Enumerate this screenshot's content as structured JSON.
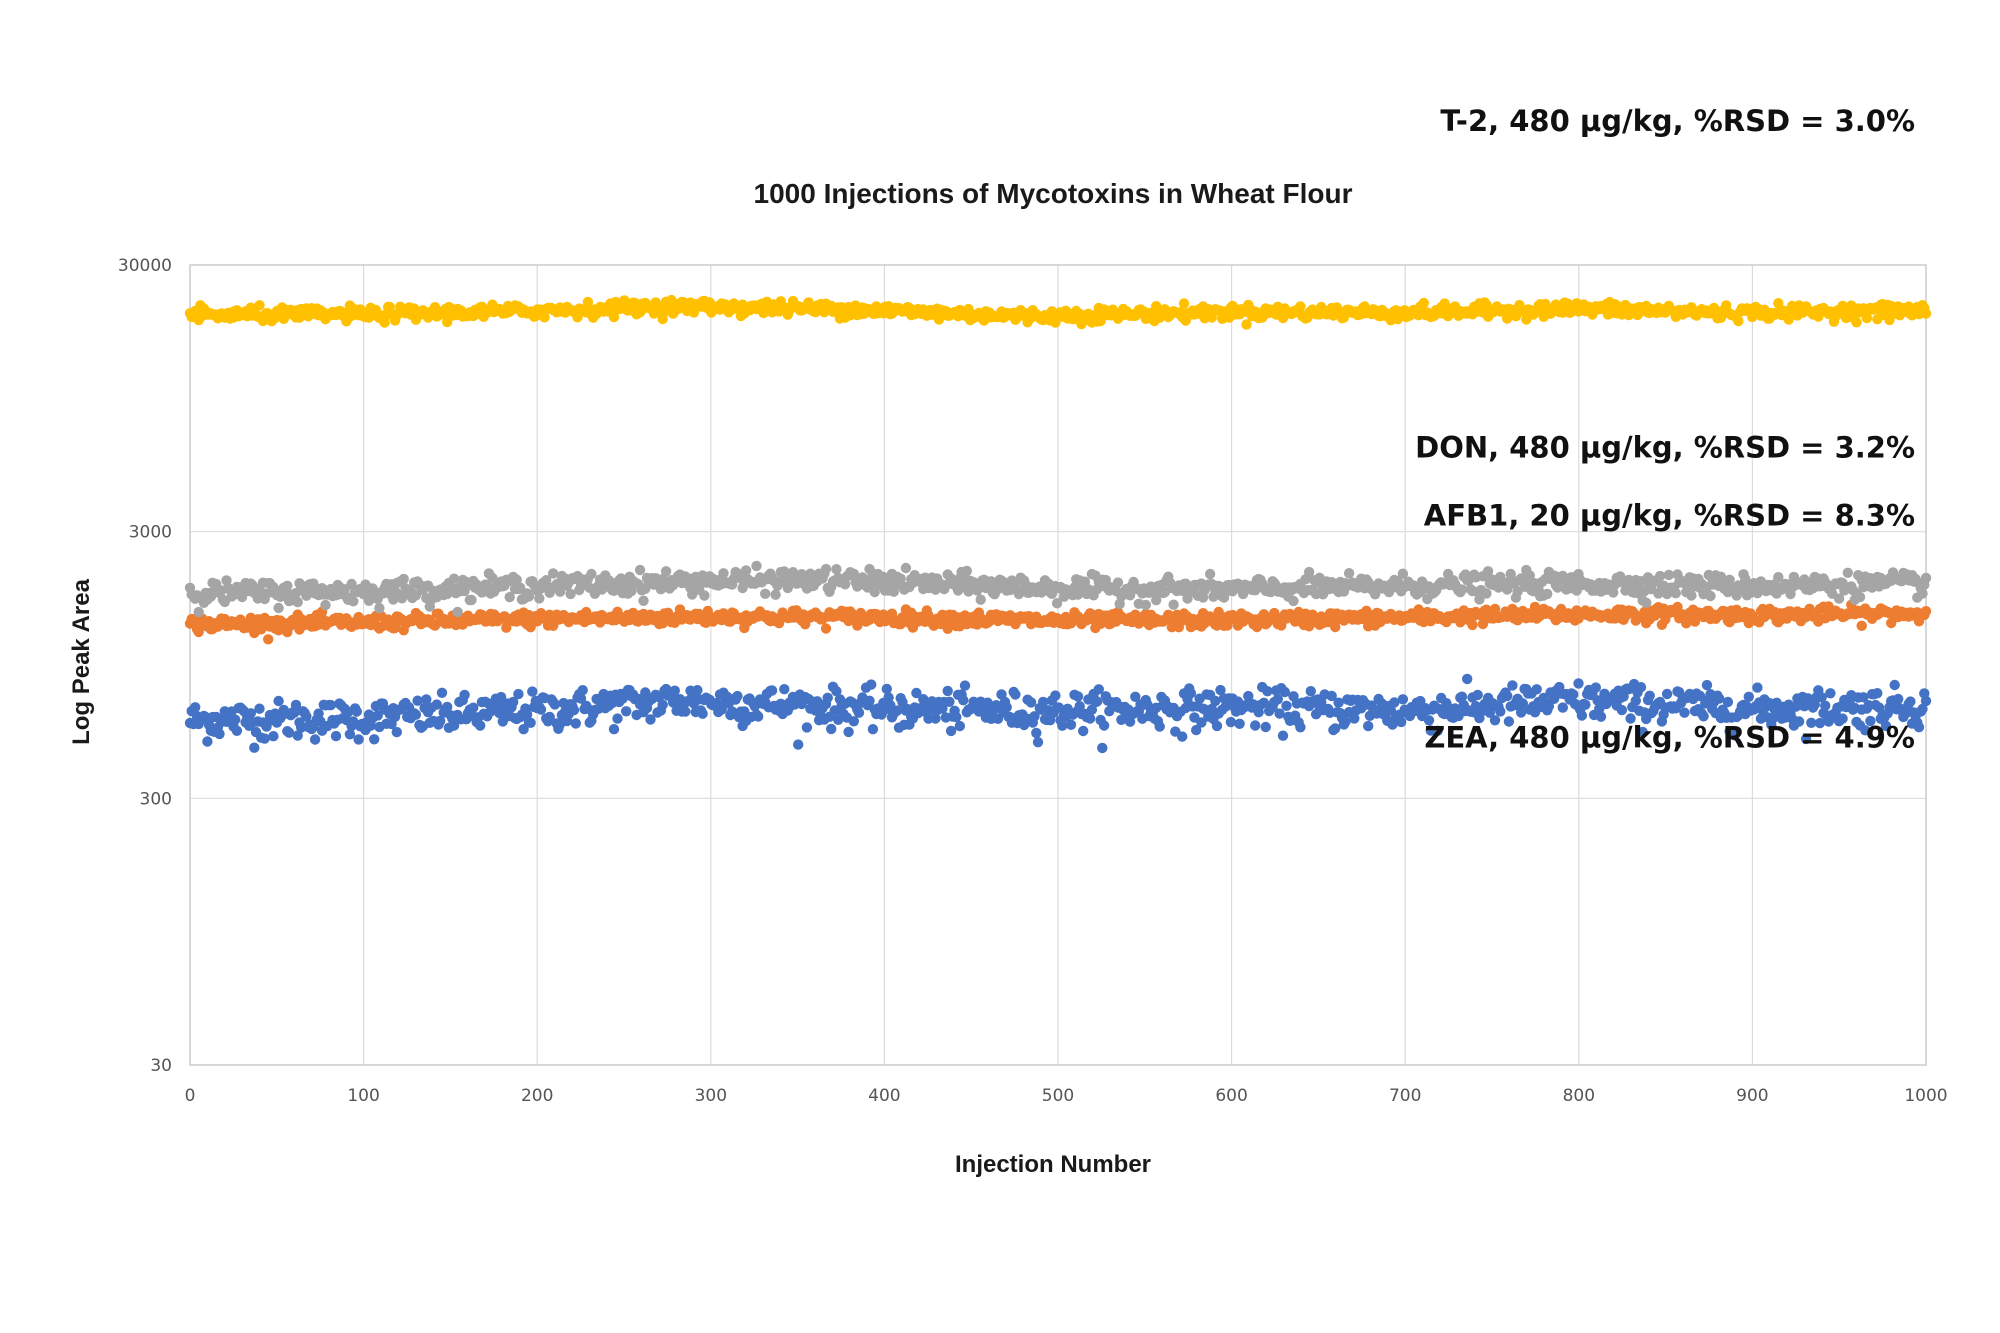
{
  "chart_data": {
    "type": "scatter",
    "title": "1000 Injections of Mycotoxins in Wheat Flour",
    "xlabel": "Injection Number",
    "ylabel": "Log Peak Area",
    "xlim": [
      0,
      1000
    ],
    "ylim": [
      30,
      30000
    ],
    "y_scale": "log",
    "x_ticks": [
      "0",
      "100",
      "200",
      "300",
      "400",
      "500",
      "600",
      "700",
      "800",
      "900",
      "1000"
    ],
    "y_ticks": [
      "30",
      "300",
      "3000",
      "30000"
    ],
    "grid": true,
    "legend": "none",
    "series": [
      {
        "name": "T-2, 480 µg/kg, %RSD = 3.0%",
        "color": "#FFC000",
        "n_points": 1000,
        "rsd_percent": 3.0,
        "trend": [
          [
            0,
            19500
          ],
          [
            100,
            19600
          ],
          [
            200,
            20200
          ],
          [
            280,
            21000
          ],
          [
            380,
            20500
          ],
          [
            480,
            19300
          ],
          [
            600,
            20000
          ],
          [
            700,
            19900
          ],
          [
            800,
            20600
          ],
          [
            880,
            19900
          ],
          [
            1000,
            20200
          ]
        ]
      },
      {
        "name": "ZEA, 480 µg/kg, %RSD = 4.9%",
        "color": "#A5A5A5",
        "n_points": 1000,
        "rsd_percent": 4.9,
        "trend": [
          [
            0,
            1770
          ],
          [
            100,
            1790
          ],
          [
            200,
            1880
          ],
          [
            300,
            1960
          ],
          [
            370,
            1980
          ],
          [
            500,
            1840
          ],
          [
            600,
            1820
          ],
          [
            700,
            1880
          ],
          [
            800,
            1920
          ],
          [
            900,
            1880
          ],
          [
            1000,
            1920
          ]
        ]
      },
      {
        "name": "DON, 480 µg/kg, %RSD = 3.2%",
        "color": "#ED7D31",
        "n_points": 1000,
        "rsd_percent": 3.2,
        "trend": [
          [
            0,
            1350
          ],
          [
            100,
            1370
          ],
          [
            200,
            1410
          ],
          [
            300,
            1440
          ],
          [
            400,
            1430
          ],
          [
            500,
            1390
          ],
          [
            600,
            1400
          ],
          [
            700,
            1430
          ],
          [
            800,
            1470
          ],
          [
            900,
            1460
          ],
          [
            1000,
            1480
          ]
        ]
      },
      {
        "name": "AFB1, 20 µg/kg, %RSD = 8.3%",
        "color": "#4472C4",
        "n_points": 1000,
        "rsd_percent": 8.3,
        "trend": [
          [
            0,
            590
          ],
          [
            100,
            600
          ],
          [
            200,
            640
          ],
          [
            280,
            700
          ],
          [
            400,
            650
          ],
          [
            500,
            640
          ],
          [
            600,
            660
          ],
          [
            700,
            640
          ],
          [
            800,
            700
          ],
          [
            900,
            650
          ],
          [
            1000,
            670
          ]
        ]
      }
    ]
  }
}
